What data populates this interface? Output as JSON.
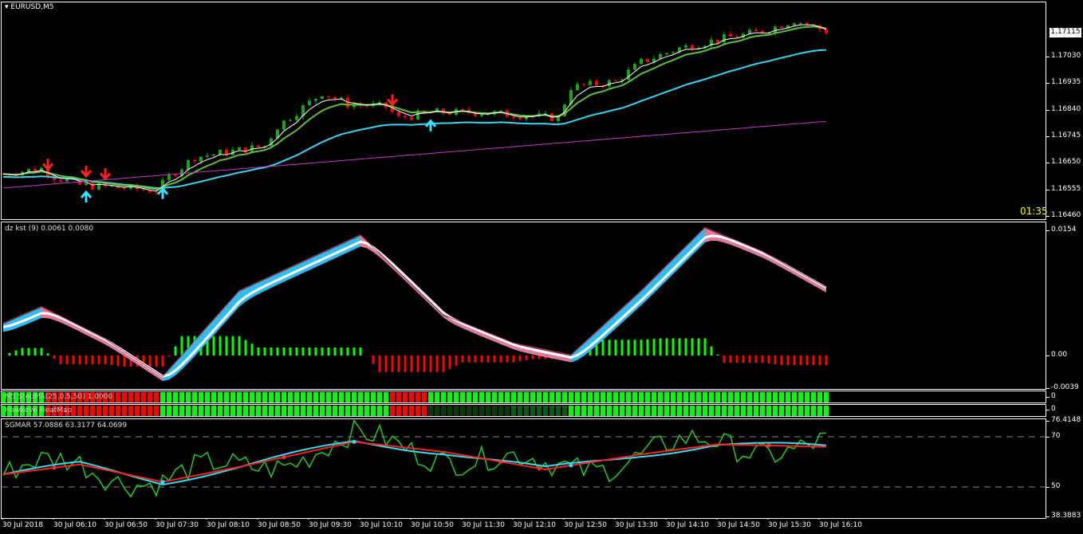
{
  "window": {
    "title": "EURUSD,M5",
    "timer": "01:35",
    "current_price": "1.17115"
  },
  "main": {
    "price_axis": [
      "1.17030",
      "1.16935",
      "1.16840",
      "1.16745",
      "1.16650",
      "1.16555",
      "1.16460"
    ],
    "close_keypoints": [
      [
        0,
        1.1661
      ],
      [
        6,
        1.1663
      ],
      [
        8,
        1.166
      ],
      [
        12,
        1.1657
      ],
      [
        19,
        1.1656
      ],
      [
        24,
        1.1655
      ],
      [
        26,
        1.166
      ],
      [
        30,
        1.1667
      ],
      [
        41,
        1.1671
      ],
      [
        43,
        1.1678
      ],
      [
        50,
        1.169
      ],
      [
        54,
        1.1686
      ],
      [
        60,
        1.1685
      ],
      [
        62,
        1.1681
      ],
      [
        67,
        1.1683
      ],
      [
        75,
        1.1683
      ],
      [
        87,
        1.1681
      ],
      [
        89,
        1.1692
      ],
      [
        96,
        1.1694
      ],
      [
        100,
        1.1701
      ],
      [
        106,
        1.1706
      ],
      [
        112,
        1.1709
      ],
      [
        119,
        1.1712
      ],
      [
        124,
        1.1716
      ],
      [
        129,
        1.1712
      ]
    ],
    "sell_arrows": [
      7,
      13,
      16,
      61
    ],
    "buy_arrows": [
      13,
      25,
      67
    ],
    "colors": {
      "bull": "#1fa01f",
      "bear": "#ff0000",
      "fast_ma": "#ffffff",
      "mid_ma": "#5fc13a",
      "slow_ma": "#33d6f0",
      "long_ma": "#cc33cc"
    }
  },
  "kst": {
    "label": "dz kst (9) 0.0061 0.0080",
    "axis": [
      "0.0154",
      "0.00",
      "-0.0039"
    ],
    "keypoints": [
      [
        0,
        0.0034
      ],
      [
        6,
        0.0054
      ],
      [
        16,
        0.0015
      ],
      [
        25,
        -0.003
      ],
      [
        37,
        0.0073
      ],
      [
        56,
        0.014
      ],
      [
        69,
        0.0044
      ],
      [
        80,
        0.001
      ],
      [
        89,
        -0.0004
      ],
      [
        100,
        0.0073
      ],
      [
        110,
        0.0149
      ],
      [
        119,
        0.012
      ],
      [
        129,
        0.0077
      ]
    ]
  },
  "stepma": {
    "label": "M5 StepMA(25,0.5,50) 1.0000",
    "axis": "0",
    "segments": [
      [
        0,
        7,
        "#00ff00"
      ],
      [
        7,
        13,
        "#ff0000"
      ],
      [
        13,
        25,
        "#ff0000"
      ],
      [
        25,
        61,
        "#00ff00"
      ],
      [
        61,
        67,
        "#ff0000"
      ],
      [
        67,
        130,
        "#00ff00"
      ]
    ]
  },
  "heatmap": {
    "label": "Hawkeye HeatMap",
    "axis": "0",
    "segments": [
      [
        0,
        7,
        "#00ff00"
      ],
      [
        7,
        25,
        "#ff0000"
      ],
      [
        25,
        61,
        "#00ff00"
      ],
      [
        61,
        67,
        "#ff0000"
      ],
      [
        67,
        80,
        "#0a3a0a"
      ],
      [
        80,
        89,
        "#0f5a0f"
      ],
      [
        89,
        130,
        "#00ff00"
      ]
    ]
  },
  "sgmar": {
    "label": "SGMAR 57.0886 63.3177 64.0699",
    "axis": [
      "76.4148",
      "70",
      "50",
      "38.3883"
    ],
    "red_keypoints": [
      [
        0,
        55
      ],
      [
        12,
        59
      ],
      [
        25,
        52
      ],
      [
        37,
        58
      ],
      [
        55,
        68
      ],
      [
        69,
        64
      ],
      [
        85,
        57
      ],
      [
        100,
        63
      ],
      [
        112,
        67
      ],
      [
        129,
        66
      ]
    ]
  },
  "time_axis": [
    "30 Jul 2018",
    "30 Jul 06:10",
    "30 Jul 06:50",
    "30 Jul 07:30",
    "30 Jul 08:10",
    "30 Jul 08:50",
    "30 Jul 09:30",
    "30 Jul 10:10",
    "30 Jul 10:50",
    "30 Jul 11:30",
    "30 Jul 12:10",
    "30 Jul 12:50",
    "30 Jul 13:30",
    "30 Jul 14:10",
    "30 Jul 14:50",
    "30 Jul 15:30",
    "30 Jul 16:10"
  ]
}
